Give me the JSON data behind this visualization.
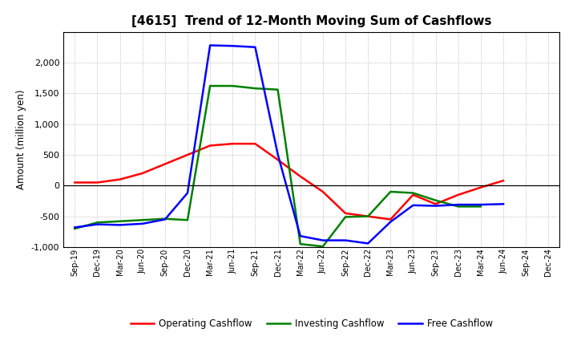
{
  "title": "[4615]  Trend of 12-Month Moving Sum of Cashflows",
  "ylabel": "Amount (million yen)",
  "ylim": [
    -1000,
    2500
  ],
  "yticks": [
    -1000,
    -500,
    0,
    500,
    1000,
    1500,
    2000
  ],
  "categories": [
    "Sep-19",
    "Dec-19",
    "Mar-20",
    "Jun-20",
    "Sep-20",
    "Dec-20",
    "Mar-21",
    "Jun-21",
    "Sep-21",
    "Dec-21",
    "Mar-22",
    "Jun-22",
    "Sep-22",
    "Dec-22",
    "Mar-23",
    "Jun-23",
    "Sep-23",
    "Dec-23",
    "Mar-24",
    "Jun-24",
    "Sep-24",
    "Dec-24"
  ],
  "operating": [
    50,
    50,
    100,
    200,
    350,
    500,
    650,
    680,
    680,
    420,
    150,
    -100,
    -450,
    -500,
    -550,
    -150,
    -300,
    -150,
    -30,
    80,
    null,
    null
  ],
  "investing": [
    -700,
    -600,
    -580,
    -560,
    -540,
    -560,
    1620,
    1620,
    1580,
    1560,
    -950,
    -990,
    -510,
    -500,
    -100,
    -120,
    -240,
    -340,
    -340,
    null,
    null,
    null
  ],
  "free": [
    -680,
    -630,
    -640,
    -620,
    -550,
    -120,
    2280,
    2270,
    2250,
    510,
    -820,
    -890,
    -890,
    -940,
    -590,
    -320,
    -330,
    -310,
    -310,
    -300,
    null,
    null
  ],
  "operating_color": "#ff0000",
  "investing_color": "#008000",
  "free_color": "#0000ff",
  "background_color": "#ffffff",
  "grid_color": "#aaaaaa",
  "title_fontsize": 11,
  "legend_labels": [
    "Operating Cashflow",
    "Investing Cashflow",
    "Free Cashflow"
  ]
}
